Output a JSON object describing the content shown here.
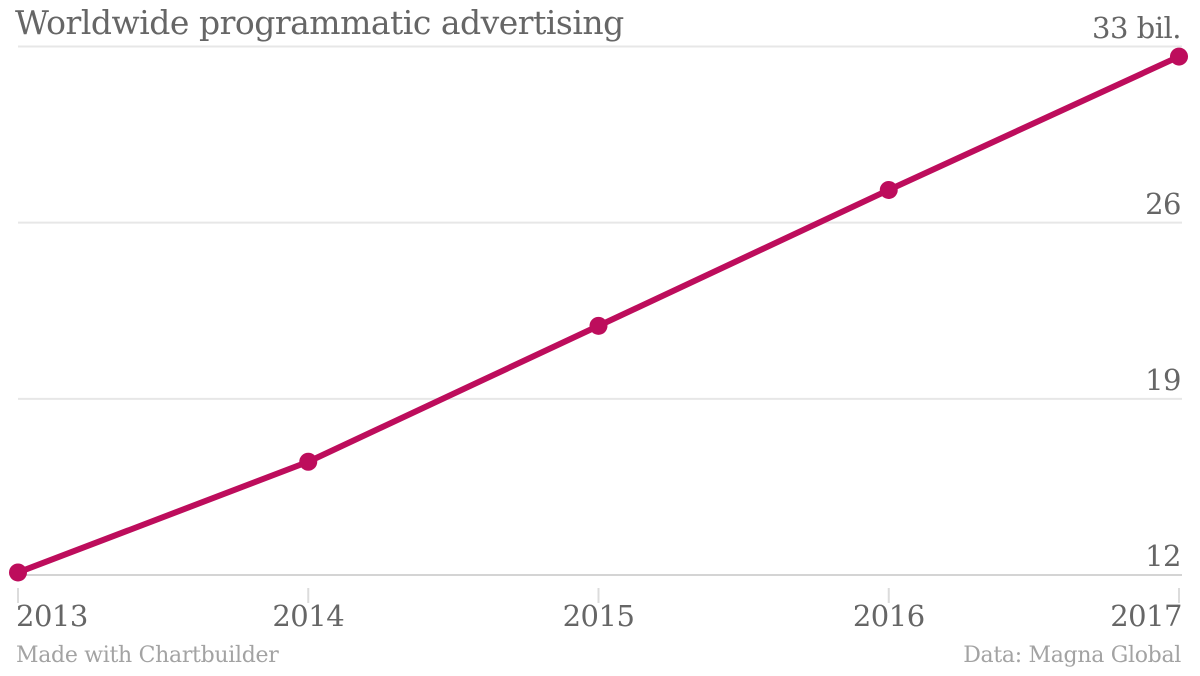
{
  "title": "Worldwide programmatic advertising",
  "footer": {
    "credit": "Made with Chartbuilder",
    "source": "Data: Magna Global"
  },
  "colors": {
    "line": "#bd0d5c",
    "text": "#666666",
    "muted_text": "#a3a3a3",
    "grid": "#e7e7e7",
    "axis": "#d4d4d4",
    "tick": "#dcdcdc"
  },
  "chart_data": {
    "type": "line",
    "title": "Worldwide programmatic advertising",
    "x": [
      2013,
      2014,
      2015,
      2016,
      2017
    ],
    "x_tick_labels": [
      "2013",
      "2014",
      "2015",
      "2016",
      "2017"
    ],
    "series": [
      {
        "name": "Worldwide programmatic advertising",
        "values": [
          12.1,
          16.5,
          21.9,
          27.3,
          32.6
        ]
      }
    ],
    "unit": "bil.",
    "ylim": [
      12,
      33
    ],
    "y_ticks": [
      12,
      19,
      26,
      33
    ],
    "y_tick_labels": [
      "12",
      "19",
      "26",
      "33 bil."
    ],
    "y_axis_side": "right",
    "grid": "horizontal-only",
    "legend": "none",
    "markers": true,
    "source": "Magna Global"
  }
}
